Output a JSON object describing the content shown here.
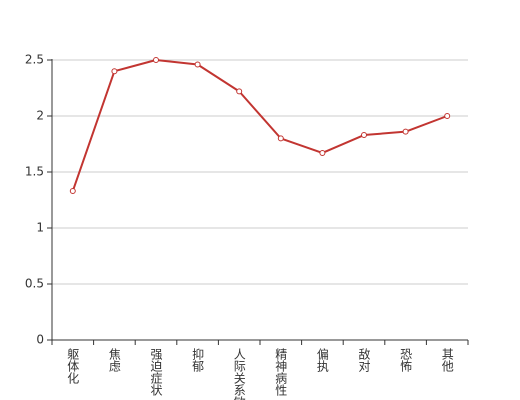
{
  "chart_data": {
    "type": "line",
    "categories": [
      "躯体化",
      "焦虑",
      "强迫症状",
      "抑郁",
      "人际关系敏感",
      "精神病性",
      "偏执",
      "敌对",
      "恐怖",
      "其他"
    ],
    "values": [
      1.33,
      2.4,
      2.5,
      2.46,
      2.22,
      1.8,
      1.67,
      1.83,
      1.86,
      2.0
    ],
    "color": "#c23531",
    "ylim": [
      0,
      2.5
    ],
    "yticks": [
      0,
      0.5,
      1,
      1.5,
      2,
      2.5
    ],
    "grid": true
  }
}
